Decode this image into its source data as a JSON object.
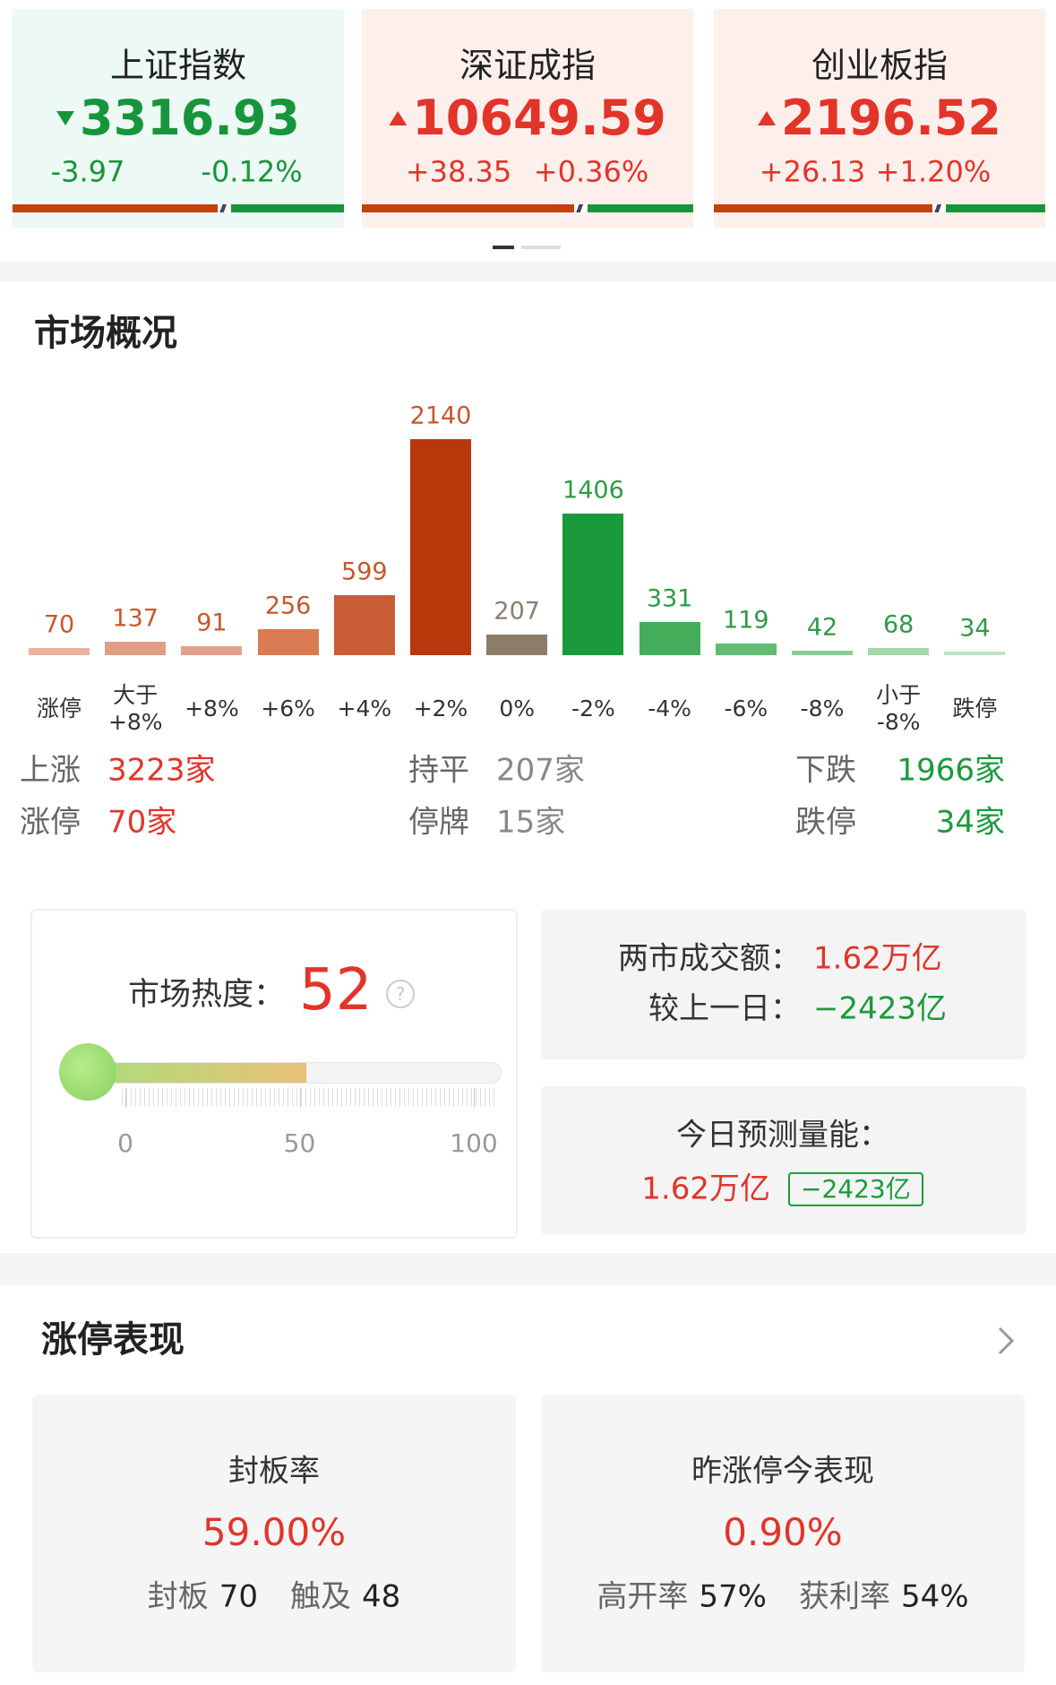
{
  "indices": [
    {
      "name": "上证指数",
      "value": "3316.93",
      "change": "-3.97",
      "change_pct": "-0.12%"
    },
    {
      "name": "深证成指",
      "value": "10649.59",
      "change": "+38.35",
      "change_pct": "+0.36%"
    },
    {
      "name": "创业板指",
      "value": "2196.52",
      "change": "+26.13",
      "change_pct": "+1.20%"
    }
  ],
  "chart_data": {
    "type": "bar",
    "title": "市场概况",
    "categories": [
      "涨停",
      "大于\n+8%",
      "+8%",
      "+6%",
      "+4%",
      "+2%",
      "0%",
      "-2%",
      "-4%",
      "-6%",
      "-8%",
      "小于\n-8%",
      "跌停"
    ],
    "values": [
      70,
      137,
      91,
      256,
      599,
      2140,
      207,
      1406,
      331,
      119,
      42,
      68,
      34
    ],
    "colors": [
      "#eab3a0",
      "#df9f85",
      "#e2a18a",
      "#d97a52",
      "#c95d35",
      "#b8380b",
      "#8c7c6a",
      "#1a9a3a",
      "#45ad5a",
      "#62bb70",
      "#8acd95",
      "#a2d8aa",
      "#bce3c2"
    ],
    "label_colors": [
      "#c8572a",
      "#c8572a",
      "#c8572a",
      "#c8572a",
      "#c8572a",
      "#c8572a",
      "#8a7e70",
      "#2e9a46",
      "#2e9a46",
      "#2e9a46",
      "#2e9a46",
      "#2e9a46",
      "#2e9a46"
    ]
  },
  "market_stats": [
    [
      {
        "label": "上涨",
        "value": "3223家"
      },
      {
        "label": "持平",
        "value": "207家"
      },
      {
        "label": "下跌",
        "value": "1966家"
      }
    ],
    [
      {
        "label": "涨停",
        "value": "70家"
      },
      {
        "label": "停牌",
        "value": "15家"
      },
      {
        "label": "跌停",
        "value": "34家"
      }
    ]
  ],
  "heat": {
    "label": "市场热度：",
    "value": 52,
    "scale_ticks": [
      0,
      50,
      100
    ]
  },
  "turnover": {
    "amount_label": "两市成交额：",
    "amount": "1.62万亿",
    "change_label": "较上一日：",
    "change": "−2423亿"
  },
  "forecast": {
    "label": "今日预测量能：",
    "amount": "1.62万亿",
    "change": "−2423亿"
  },
  "limit_up": {
    "title": "涨停表现",
    "cards": [
      {
        "title": "封板率",
        "value": "59.00%",
        "stats": [
          {
            "label": "封板",
            "value": "70"
          },
          {
            "label": "触及",
            "value": "48"
          }
        ]
      },
      {
        "title": "昨涨停今表现",
        "value": "0.90%",
        "stats": [
          {
            "label": "高开率",
            "value": "57%"
          },
          {
            "label": "获利率",
            "value": "54%"
          }
        ]
      }
    ]
  }
}
